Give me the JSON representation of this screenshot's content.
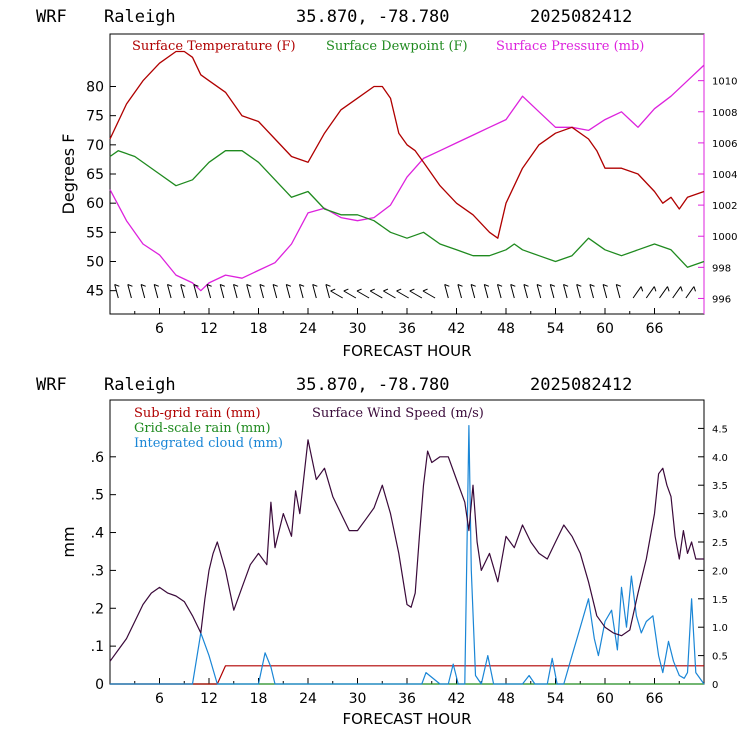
{
  "header": {
    "model": "WRF",
    "station": "Raleigh",
    "coords": "35.870, -78.780",
    "run": "2025082412"
  },
  "colors": {
    "temperature": "#b00000",
    "dewpoint": "#1f8a1f",
    "pressure": "#dd22dd",
    "subgrid_rain": "#b00000",
    "grid_rain": "#1f8a1f",
    "cloud": "#1a86d6",
    "wind": "#3a0a3a",
    "axis": "#000000"
  },
  "chart_data": [
    {
      "type": "line",
      "xlabel": "FORECAST HOUR",
      "ylabel": "Degrees F",
      "xlim": [
        0,
        72
      ],
      "ylim": [
        41,
        89
      ],
      "y2lim": [
        995,
        1013
      ],
      "xticks": [
        6,
        12,
        18,
        24,
        30,
        36,
        42,
        48,
        54,
        60,
        66
      ],
      "yticks": [
        45,
        50,
        55,
        60,
        65,
        70,
        75,
        80
      ],
      "y2ticks": [
        996,
        998,
        1000,
        1002,
        1004,
        1006,
        1008,
        1010
      ],
      "legend_placement": "top",
      "series": [
        {
          "name": "Surface Temperature (F)",
          "axis": "left",
          "x": [
            0,
            2,
            4,
            6,
            8,
            9,
            10,
            11,
            12,
            14,
            16,
            18,
            20,
            22,
            24,
            26,
            28,
            30,
            32,
            33,
            34,
            35,
            36,
            37,
            38,
            40,
            42,
            44,
            46,
            47,
            48,
            50,
            52,
            54,
            56,
            58,
            59,
            60,
            62,
            64,
            66,
            67,
            68,
            69,
            70,
            72
          ],
          "values": [
            71,
            77,
            81,
            84,
            86,
            86,
            85,
            82,
            81,
            79,
            75,
            74,
            71,
            68,
            67,
            72,
            76,
            78,
            80,
            80,
            78,
            72,
            70,
            69,
            67,
            63,
            60,
            58,
            55,
            54,
            60,
            66,
            70,
            72,
            73,
            71,
            69,
            66,
            66,
            65,
            62,
            60,
            61,
            59,
            61,
            62
          ]
        },
        {
          "name": "Surface Dewpoint (F)",
          "axis": "left",
          "x": [
            0,
            1,
            3,
            6,
            8,
            10,
            12,
            14,
            16,
            18,
            20,
            22,
            24,
            26,
            28,
            30,
            32,
            34,
            36,
            38,
            40,
            42,
            44,
            46,
            48,
            49,
            50,
            52,
            54,
            56,
            58,
            60,
            62,
            64,
            66,
            68,
            70,
            72
          ],
          "values": [
            68,
            69,
            68,
            65,
            63,
            64,
            67,
            69,
            69,
            67,
            64,
            61,
            62,
            59,
            58,
            58,
            57,
            55,
            54,
            55,
            53,
            52,
            51,
            51,
            52,
            53,
            52,
            51,
            50,
            51,
            54,
            52,
            51,
            52,
            53,
            52,
            49,
            50
          ]
        },
        {
          "name": "Surface Pressure (mb)",
          "axis": "right",
          "x": [
            0,
            2,
            4,
            6,
            8,
            10,
            11,
            12,
            14,
            16,
            18,
            20,
            22,
            24,
            26,
            28,
            30,
            32,
            34,
            36,
            38,
            40,
            42,
            44,
            46,
            48,
            50,
            52,
            54,
            56,
            58,
            60,
            62,
            64,
            66,
            68,
            70,
            72
          ],
          "values": [
            1003,
            1001,
            999.5,
            998.8,
            997.5,
            997,
            996.5,
            997,
            997.5,
            997.3,
            997.8,
            998.3,
            999.5,
            1001.5,
            1001.8,
            1001.2,
            1001,
            1001.2,
            1002,
            1003.8,
            1005,
            1005.5,
            1006,
            1006.5,
            1007,
            1007.5,
            1009,
            1008,
            1007,
            1007,
            1006.8,
            1007.5,
            1008,
            1007,
            1008.2,
            1009,
            1010,
            1011
          ]
        }
      ]
    },
    {
      "type": "line",
      "xlabel": "FORECAST HOUR",
      "ylabel": "mm",
      "xlim": [
        0,
        72
      ],
      "ylim": [
        0,
        0.75
      ],
      "y2lim": [
        0,
        5
      ],
      "xticks": [
        6,
        12,
        18,
        24,
        30,
        36,
        42,
        48,
        54,
        60,
        66
      ],
      "ytick_labels": [
        "0",
        ".1",
        ".2",
        ".3",
        ".4",
        ".5",
        ".6"
      ],
      "yticks": [
        0,
        0.1,
        0.2,
        0.3,
        0.4,
        0.5,
        0.6
      ],
      "y2ticks": [
        0,
        0.5,
        1.0,
        1.5,
        2.0,
        2.5,
        3.0,
        3.5,
        4.0,
        4.5
      ],
      "legend_placement": "top-left",
      "series": [
        {
          "name": "Sub-grid rain (mm)",
          "axis": "left",
          "x": [
            0,
            13,
            14,
            72
          ],
          "values": [
            0,
            0,
            0.048,
            0.048
          ]
        },
        {
          "name": "Grid-scale rain (mm)",
          "axis": "left",
          "x": [
            0,
            72
          ],
          "values": [
            0,
            0
          ]
        },
        {
          "name": "Integrated cloud (mm)",
          "axis": "right",
          "x": [
            0,
            10,
            11,
            12,
            13,
            18,
            18.8,
            19.5,
            20,
            36,
            37.8,
            38.3,
            40,
            41,
            41.6,
            42.2,
            43,
            43.5,
            43.8,
            44.3,
            45,
            45.8,
            46.5,
            47,
            50,
            50.8,
            51.5,
            53,
            53.6,
            54.2,
            55,
            56,
            57,
            58,
            58.7,
            59.2,
            60,
            60.8,
            61.5,
            62,
            62.6,
            63.2,
            63.8,
            64.4,
            65,
            65.8,
            66.5,
            67,
            67.7,
            68.3,
            69,
            69.6,
            70,
            70.5,
            71,
            72
          ],
          "values": [
            0,
            0,
            0.9,
            0.5,
            0,
            0,
            0.55,
            0.3,
            0,
            0,
            0,
            0.2,
            0,
            0,
            0.35,
            0,
            0,
            4.55,
            2.0,
            0.15,
            0,
            0.5,
            0,
            0,
            0,
            0.15,
            0,
            0,
            0.45,
            0,
            0,
            0.5,
            1.0,
            1.5,
            0.8,
            0.5,
            1.1,
            1.3,
            0.6,
            1.7,
            1.0,
            1.9,
            1.2,
            0.9,
            1.1,
            1.2,
            0.5,
            0.2,
            0.75,
            0.4,
            0.15,
            0.1,
            0.2,
            1.5,
            0.2,
            0
          ]
        },
        {
          "name": "Surface Wind Speed (m/s)",
          "axis": "right",
          "x": [
            0,
            1,
            2,
            3,
            4,
            5,
            6,
            7,
            8,
            9,
            10,
            11,
            11.5,
            12,
            12.5,
            13,
            14,
            15,
            16,
            17,
            18,
            19,
            19.5,
            20,
            21,
            22,
            22.5,
            23,
            24,
            25,
            26,
            27,
            28,
            29,
            30,
            31,
            32,
            33,
            34,
            35,
            36,
            36.5,
            37,
            37.5,
            38,
            38.5,
            39,
            40,
            41,
            42,
            43,
            43.5,
            44,
            44.5,
            45,
            46,
            47,
            48,
            49,
            50,
            51,
            52,
            53,
            54,
            55,
            56,
            57,
            58,
            59,
            60,
            61,
            62,
            63,
            64,
            65,
            66,
            66.5,
            67,
            67.5,
            68,
            68.5,
            69,
            69.5,
            70,
            70.5,
            71,
            72
          ],
          "values": [
            0.4,
            0.6,
            0.8,
            1.1,
            1.4,
            1.6,
            1.7,
            1.6,
            1.55,
            1.45,
            1.2,
            0.9,
            1.5,
            2.0,
            2.3,
            2.5,
            2.0,
            1.3,
            1.7,
            2.1,
            2.3,
            2.1,
            3.2,
            2.4,
            3.0,
            2.6,
            3.4,
            3.0,
            4.3,
            3.6,
            3.8,
            3.3,
            3.0,
            2.7,
            2.7,
            2.9,
            3.1,
            3.5,
            3.0,
            2.3,
            1.4,
            1.35,
            1.6,
            2.6,
            3.5,
            4.1,
            3.9,
            4.0,
            4.0,
            3.6,
            3.2,
            2.7,
            3.5,
            2.5,
            2.0,
            2.3,
            1.8,
            2.6,
            2.4,
            2.8,
            2.5,
            2.3,
            2.2,
            2.5,
            2.8,
            2.6,
            2.3,
            1.8,
            1.2,
            1.0,
            0.9,
            0.85,
            0.95,
            1.6,
            2.2,
            3.0,
            3.7,
            3.8,
            3.5,
            3.3,
            2.6,
            2.2,
            2.7,
            2.3,
            2.5,
            2.2,
            2.2
          ]
        }
      ]
    }
  ]
}
